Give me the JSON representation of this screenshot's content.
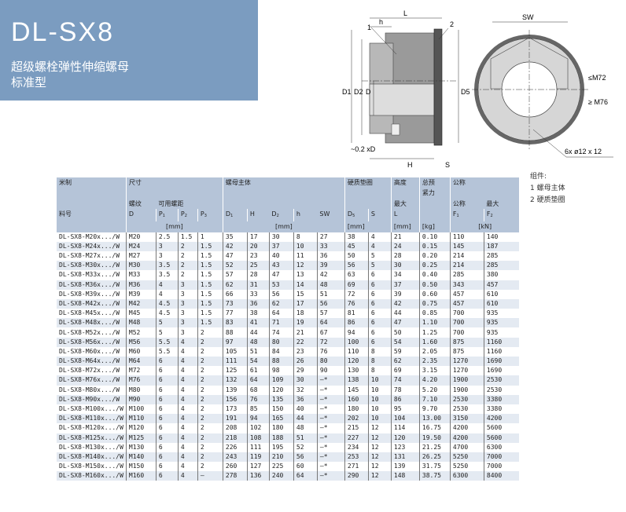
{
  "title": "DL-SX8",
  "subtitle1": "超级螺栓弹性伸缩螺母",
  "subtitle2": "标准型",
  "drawing": {
    "label1": "1",
    "label2": "2",
    "L": "L",
    "h": "h",
    "H": "H",
    "S": "S",
    "D1": "D1",
    "D2": "D2",
    "D": "D",
    "D5": "D5",
    "offset": "~0.2 xD",
    "SW": "SW",
    "le": "≤M72",
    "ge": "≥ M76",
    "holes": "6x  ø12 x 12"
  },
  "legend": {
    "title": "组件:",
    "items": [
      "1 螺母主体",
      "2 硬质垫圈"
    ]
  },
  "header": {
    "metric": "米制",
    "size": "尺寸",
    "body": "螺母主体",
    "washer": "硬质垫圈",
    "height": "高度",
    "preload1": "总预",
    "preload2": "紧力",
    "nominal": "公称",
    "thread": "螺纹",
    "pitch": "可用螺距",
    "max": "最大",
    "nominal2": "公称",
    "max2": "最大",
    "part": "料号",
    "cols": [
      "D",
      "P1",
      "P2",
      "P3",
      "D1",
      "H",
      "D2",
      "h",
      "SW",
      "D5",
      "S",
      "L",
      "",
      "F1",
      "F2"
    ],
    "mm": "[mm]",
    "kg": "[kg]",
    "kN": "[kN]"
  },
  "rows": [
    [
      "DL-SX8-M20x.../W",
      "M20",
      "2.5",
      "1.5",
      "1",
      "35",
      "17",
      "30",
      "8",
      "27",
      "38",
      "4",
      "21",
      "0.10",
      "110",
      "140"
    ],
    [
      "DL-SX8-M24x.../W",
      "M24",
      "3",
      "2",
      "1.5",
      "42",
      "20",
      "37",
      "10",
      "33",
      "45",
      "4",
      "24",
      "0.15",
      "145",
      "187"
    ],
    [
      "DL-SX8-M27x.../W",
      "M27",
      "3",
      "2",
      "1.5",
      "47",
      "23",
      "40",
      "11",
      "36",
      "50",
      "5",
      "28",
      "0.20",
      "214",
      "285"
    ],
    [
      "DL-SX8-M30x.../W",
      "M30",
      "3.5",
      "2",
      "1.5",
      "52",
      "25",
      "43",
      "12",
      "39",
      "56",
      "5",
      "30",
      "0.25",
      "214",
      "285"
    ],
    [
      "DL-SX8-M33x.../W",
      "M33",
      "3.5",
      "2",
      "1.5",
      "57",
      "28",
      "47",
      "13",
      "42",
      "63",
      "6",
      "34",
      "0.40",
      "285",
      "380"
    ],
    [
      "DL-SX8-M36x.../W",
      "M36",
      "4",
      "3",
      "1.5",
      "62",
      "31",
      "53",
      "14",
      "48",
      "69",
      "6",
      "37",
      "0.50",
      "343",
      "457"
    ],
    [
      "DL-SX8-M39x.../W",
      "M39",
      "4",
      "3",
      "1.5",
      "66",
      "33",
      "56",
      "15",
      "51",
      "72",
      "6",
      "39",
      "0.60",
      "457",
      "610"
    ],
    [
      "DL-SX8-M42x.../W",
      "M42",
      "4.5",
      "3",
      "1.5",
      "73",
      "36",
      "62",
      "17",
      "56",
      "76",
      "6",
      "42",
      "0.75",
      "457",
      "610"
    ],
    [
      "DL-SX8-M45x.../W",
      "M45",
      "4.5",
      "3",
      "1.5",
      "77",
      "38",
      "64",
      "18",
      "57",
      "81",
      "6",
      "44",
      "0.85",
      "700",
      "935"
    ],
    [
      "DL-SX8-M48x.../W",
      "M48",
      "5",
      "3",
      "1.5",
      "83",
      "41",
      "71",
      "19",
      "64",
      "86",
      "6",
      "47",
      "1.10",
      "700",
      "935"
    ],
    [
      "DL-SX8-M52x.../W",
      "M52",
      "5",
      "3",
      "2",
      "88",
      "44",
      "74",
      "21",
      "67",
      "94",
      "6",
      "50",
      "1.25",
      "700",
      "935"
    ],
    [
      "DL-SX8-M56x.../W",
      "M56",
      "5.5",
      "4",
      "2",
      "97",
      "48",
      "80",
      "22",
      "72",
      "100",
      "6",
      "54",
      "1.60",
      "875",
      "1160"
    ],
    [
      "DL-SX8-M60x.../W",
      "M60",
      "5.5",
      "4",
      "2",
      "105",
      "51",
      "84",
      "23",
      "76",
      "110",
      "8",
      "59",
      "2.05",
      "875",
      "1160"
    ],
    [
      "DL-SX8-M64x.../W",
      "M64",
      "6",
      "4",
      "2",
      "111",
      "54",
      "88",
      "26",
      "80",
      "120",
      "8",
      "62",
      "2.35",
      "1270",
      "1690"
    ],
    [
      "DL-SX8-M72x.../W",
      "M72",
      "6",
      "4",
      "2",
      "125",
      "61",
      "98",
      "29",
      "90",
      "130",
      "8",
      "69",
      "3.15",
      "1270",
      "1690"
    ],
    [
      "DL-SX8-M76x.../W",
      "M76",
      "6",
      "4",
      "2",
      "132",
      "64",
      "109",
      "30",
      "—*",
      "138",
      "10",
      "74",
      "4.20",
      "1900",
      "2530"
    ],
    [
      "DL-SX8-M80x.../W",
      "M80",
      "6",
      "4",
      "2",
      "139",
      "68",
      "120",
      "32",
      "—*",
      "145",
      "10",
      "78",
      "5.20",
      "1900",
      "2530"
    ],
    [
      "DL-SX8-M90x.../W",
      "M90",
      "6",
      "4",
      "2",
      "156",
      "76",
      "135",
      "36",
      "—*",
      "160",
      "10",
      "86",
      "7.10",
      "2530",
      "3380"
    ],
    [
      "DL-SX8-M100x.../W",
      "M100",
      "6",
      "4",
      "2",
      "173",
      "85",
      "150",
      "40",
      "—*",
      "180",
      "10",
      "95",
      "9.70",
      "2530",
      "3380"
    ],
    [
      "DL-SX8-M110x.../W",
      "M110",
      "6",
      "4",
      "2",
      "191",
      "94",
      "165",
      "44",
      "—*",
      "202",
      "10",
      "104",
      "13.00",
      "3150",
      "4200"
    ],
    [
      "DL-SX8-M120x.../W",
      "M120",
      "6",
      "4",
      "2",
      "208",
      "102",
      "180",
      "48",
      "—*",
      "215",
      "12",
      "114",
      "16.75",
      "4200",
      "5600"
    ],
    [
      "DL-SX8-M125x.../W",
      "M125",
      "6",
      "4",
      "2",
      "218",
      "108",
      "188",
      "51",
      "—*",
      "227",
      "12",
      "120",
      "19.50",
      "4200",
      "5600"
    ],
    [
      "DL-SX8-M130x.../W",
      "M130",
      "6",
      "4",
      "2",
      "226",
      "111",
      "195",
      "52",
      "—*",
      "234",
      "12",
      "123",
      "21.25",
      "4700",
      "6300"
    ],
    [
      "DL-SX8-M140x.../W",
      "M140",
      "6",
      "4",
      "2",
      "243",
      "119",
      "210",
      "56",
      "—*",
      "253",
      "12",
      "131",
      "26.25",
      "5250",
      "7000"
    ],
    [
      "DL-SX8-M150x.../W",
      "M150",
      "6",
      "4",
      "2",
      "260",
      "127",
      "225",
      "60",
      "—*",
      "271",
      "12",
      "139",
      "31.75",
      "5250",
      "7000"
    ],
    [
      "DL-SX8-M160x.../W",
      "M160",
      "6",
      "4",
      "–",
      "278",
      "136",
      "240",
      "64",
      "—*",
      "290",
      "12",
      "148",
      "38.75",
      "6300",
      "8400"
    ]
  ],
  "colors": {
    "title_bg": "#7b9cc0",
    "header_bg": "#b5c4d8",
    "row_alt": "#e4eaf2"
  }
}
